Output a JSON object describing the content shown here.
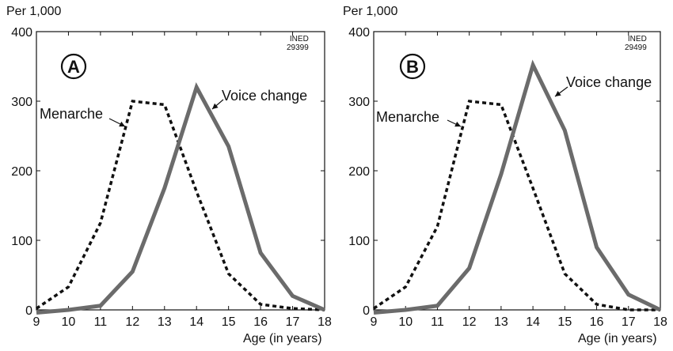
{
  "chart_data": [
    {
      "type": "line",
      "panel_label": "A",
      "unit_label": "Per 1,000",
      "xlabel": "Age (in years)",
      "source_note": [
        "INED",
        "29399"
      ],
      "x": [
        9,
        10,
        11,
        12,
        13,
        14,
        15,
        16,
        17,
        18
      ],
      "xlim": [
        9,
        18
      ],
      "ylim": [
        0,
        400
      ],
      "yticks": [
        0,
        100,
        200,
        300,
        400
      ],
      "grid": false,
      "series": [
        {
          "name": "Menarche",
          "style": "dotted",
          "color": "#111111",
          "values": [
            2,
            33,
            125,
            300,
            295,
            170,
            52,
            8,
            2,
            0
          ]
        },
        {
          "name": "Voice change",
          "style": "solid",
          "color": "#6b6b6b",
          "values": [
            -4,
            0,
            6,
            55,
            175,
            320,
            235,
            82,
            20,
            0
          ]
        }
      ]
    },
    {
      "type": "line",
      "panel_label": "B",
      "unit_label": "Per 1,000",
      "xlabel": "Age (in years)",
      "source_note": [
        "INED",
        "29499"
      ],
      "x": [
        9,
        10,
        11,
        12,
        13,
        14,
        15,
        16,
        17,
        18
      ],
      "xlim": [
        9,
        18
      ],
      "ylim": [
        0,
        400
      ],
      "yticks": [
        0,
        100,
        200,
        300,
        400
      ],
      "grid": false,
      "series": [
        {
          "name": "Menarche",
          "style": "dotted",
          "color": "#111111",
          "values": [
            2,
            33,
            120,
            300,
            295,
            175,
            52,
            8,
            0,
            0
          ]
        },
        {
          "name": "Voice change",
          "style": "solid",
          "color": "#6b6b6b",
          "values": [
            -4,
            0,
            6,
            60,
            195,
            352,
            258,
            90,
            22,
            0
          ]
        }
      ]
    }
  ]
}
